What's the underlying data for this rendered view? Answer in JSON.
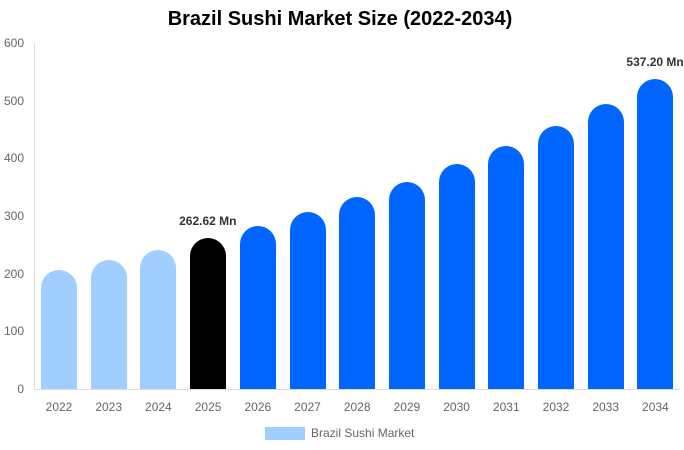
{
  "chart_data": {
    "type": "bar",
    "title": "Brazil Sushi Market Size (2022-2034)",
    "xlabel": "",
    "ylabel": "",
    "ylim": [
      0,
      600
    ],
    "yticks": [
      0,
      100,
      200,
      300,
      400,
      500,
      600
    ],
    "grid": false,
    "legend_position": "bottom",
    "categories": [
      "2022",
      "2023",
      "2024",
      "2025",
      "2026",
      "2027",
      "2028",
      "2029",
      "2030",
      "2031",
      "2032",
      "2033",
      "2034"
    ],
    "series": [
      {
        "name": "Brazil Sushi Market",
        "values": [
          206,
          224,
          241,
          262.62,
          283,
          307,
          333,
          359,
          390,
          421,
          456,
          494,
          537.2
        ]
      }
    ],
    "bar_colors": [
      "#a0cfff",
      "#a0cfff",
      "#a0cfff",
      "#000000",
      "#0066ff",
      "#0066ff",
      "#0066ff",
      "#0066ff",
      "#0066ff",
      "#0066ff",
      "#0066ff",
      "#0066ff",
      "#0066ff"
    ],
    "annotations": [
      {
        "category": "2025",
        "text": "262.62 Mn"
      },
      {
        "category": "2034",
        "text": "537.20 Mn"
      }
    ]
  },
  "legend": {
    "label": "Brazil Sushi Market",
    "color": "#a0cfff"
  }
}
